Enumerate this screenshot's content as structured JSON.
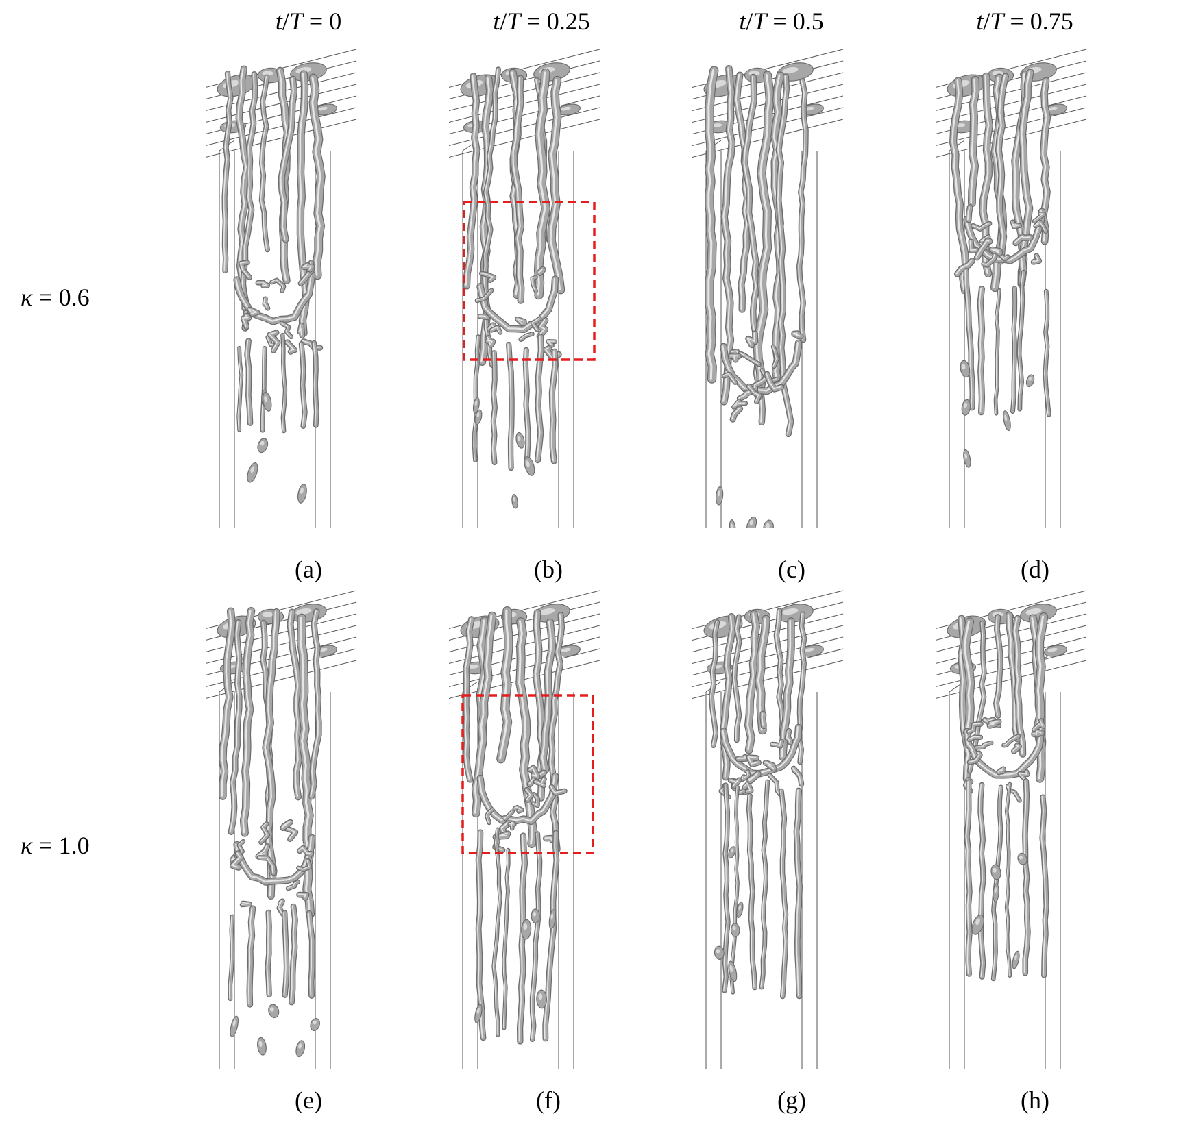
{
  "columns": [
    {
      "var1": "t",
      "var2": "T",
      "value": "0"
    },
    {
      "var1": "t",
      "var2": "T",
      "value": "0.25"
    },
    {
      "var1": "t",
      "var2": "T",
      "value": "0.5"
    },
    {
      "var1": "t",
      "var2": "T",
      "value": "0.75"
    }
  ],
  "rows": [
    {
      "symbol": "κ",
      "value": "0.6"
    },
    {
      "symbol": "κ",
      "value": "1.0"
    }
  ],
  "panel_labels": [
    "(a)",
    "(b)",
    "(c)",
    "(d)",
    "(e)",
    "(f)",
    "(g)",
    "(h)"
  ],
  "colors": {
    "vortex_fill": "#a7a7a7",
    "vortex_highlight": "#e6e6e6",
    "vortex_shadow": "#6c6c6c",
    "frame_lines": "#555555",
    "highlight_box": "#e41e1e"
  }
}
